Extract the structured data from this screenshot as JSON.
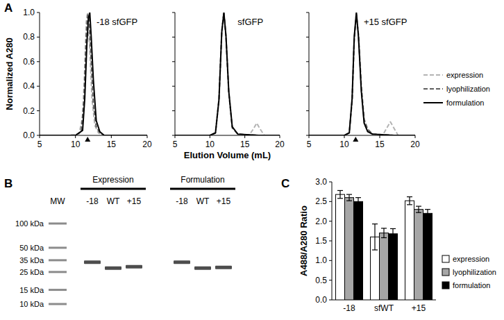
{
  "panel_labels": [
    "A",
    "B",
    "C"
  ],
  "chart_data": [
    {
      "type": "line",
      "title": "-18 sfGFP",
      "ylabel": "Normalized A280",
      "xlim": [
        5,
        20
      ],
      "xticks": [
        5,
        10,
        15,
        20
      ],
      "ylim": [
        0,
        1
      ],
      "yticks": [
        {
          "value": 0,
          "label": "0.0"
        },
        0.2,
        0.4,
        0.6,
        0.8,
        {
          "value": 1,
          "label": "1.0"
        }
      ],
      "reference_x": 11.7,
      "series": [
        {
          "name": "expression",
          "color": "#b3b3b3",
          "line_style": "dashed",
          "x": [
            5,
            9,
            10.5,
            11,
            11.3,
            11.5,
            11.7,
            12,
            12.3,
            12.7,
            13.2,
            14,
            17,
            20
          ],
          "values": [
            0,
            0,
            0.01,
            0.15,
            0.55,
            0.92,
            1,
            0.7,
            0.3,
            0.08,
            0.02,
            0,
            0,
            0
          ]
        },
        {
          "name": "lyophilization",
          "color": "#5f5f5f",
          "line_style": "dashed",
          "x": [
            5,
            10,
            10.8,
            11.2,
            11.5,
            11.7,
            11.9,
            12.2,
            12.5,
            12.9,
            13.4,
            14,
            17,
            20
          ],
          "values": [
            0,
            0,
            0.03,
            0.3,
            0.8,
            0.98,
            0.95,
            0.6,
            0.25,
            0.07,
            0.02,
            0,
            0,
            0
          ]
        },
        {
          "name": "formulation",
          "color": "#000000",
          "line_style": "solid",
          "x": [
            5,
            10,
            11,
            11.3,
            11.6,
            11.8,
            12,
            12.2,
            12.5,
            12.9,
            13.4,
            14,
            17,
            20
          ],
          "values": [
            0,
            0,
            0.04,
            0.3,
            0.75,
            0.95,
            1,
            0.8,
            0.45,
            0.12,
            0.03,
            0,
            0,
            0
          ]
        }
      ]
    },
    {
      "type": "line",
      "title": "sfGFP",
      "xlabel": "Elution Volume (mL)",
      "xlim": [
        5,
        20
      ],
      "xticks": [
        5,
        10,
        15,
        20
      ],
      "ylim": [
        0,
        1
      ],
      "yticks": [
        0,
        0.2,
        0.4,
        0.6,
        0.8,
        1
      ],
      "tick_labels": "x",
      "series": [
        {
          "name": "expression",
          "color": "#b3b3b3",
          "line_style": "dashed",
          "x": [
            5,
            10,
            10.8,
            11.3,
            11.7,
            12,
            12.3,
            12.7,
            13.2,
            14,
            15.6,
            16.2,
            16.7,
            17.2,
            17.8,
            20
          ],
          "values": [
            0,
            0,
            0.02,
            0.28,
            0.83,
            1,
            0.82,
            0.36,
            0.07,
            0.01,
            0,
            0.05,
            0.1,
            0.05,
            0,
            0
          ]
        },
        {
          "name": "lyophilization",
          "color": "#5f5f5f",
          "line_style": "dashed",
          "x": [
            5,
            10,
            10.8,
            11.3,
            11.7,
            12,
            12.3,
            12.7,
            13.2,
            14,
            17,
            20
          ],
          "values": [
            0,
            0,
            0.02,
            0.3,
            0.85,
            1,
            0.8,
            0.35,
            0.06,
            0.01,
            0,
            0
          ]
        },
        {
          "name": "formulation",
          "color": "#000000",
          "line_style": "solid",
          "x": [
            5,
            10,
            10.8,
            11.3,
            11.7,
            12,
            12.3,
            12.7,
            13.2,
            14,
            17,
            20
          ],
          "values": [
            0,
            0,
            0.02,
            0.29,
            0.84,
            1,
            0.81,
            0.36,
            0.07,
            0.01,
            0,
            0
          ]
        }
      ]
    },
    {
      "type": "line",
      "title": "+15 sfGFP",
      "legend": "right",
      "xlim": [
        5,
        20
      ],
      "xticks": [
        5,
        10,
        15,
        20
      ],
      "ylim": [
        0,
        1
      ],
      "yticks": [
        0,
        0.2,
        0.4,
        0.6,
        0.8,
        1
      ],
      "tick_labels": "x",
      "reference_x": 11.6,
      "series": [
        {
          "name": "expression",
          "color": "#b3b3b3",
          "line_style": "dashed",
          "x": [
            5,
            10,
            10.7,
            11.1,
            11.4,
            11.7,
            12,
            12.4,
            12.8,
            13.3,
            14,
            15.4,
            16,
            16.5,
            17,
            17.6,
            20
          ],
          "values": [
            0,
            0,
            0.02,
            0.3,
            0.8,
            1,
            0.8,
            0.35,
            0.1,
            0.03,
            0.01,
            0,
            0.06,
            0.11,
            0.06,
            0,
            0
          ]
        },
        {
          "name": "lyophilization",
          "color": "#5f5f5f",
          "line_style": "dashed",
          "x": [
            5,
            10,
            10.7,
            11.1,
            11.4,
            11.7,
            12,
            12.4,
            12.8,
            13.3,
            14,
            17,
            20
          ],
          "values": [
            0,
            0,
            0.02,
            0.28,
            0.78,
            0.98,
            0.82,
            0.4,
            0.13,
            0.05,
            0.01,
            0,
            0
          ]
        },
        {
          "name": "formulation",
          "color": "#000000",
          "line_style": "solid",
          "x": [
            5,
            10,
            10.7,
            11.1,
            11.4,
            11.7,
            12,
            12.4,
            12.8,
            13.3,
            14,
            17,
            20
          ],
          "values": [
            0,
            0,
            0.02,
            0.3,
            0.8,
            1,
            0.8,
            0.36,
            0.1,
            0.03,
            0.01,
            0,
            0
          ]
        }
      ]
    },
    {
      "type": "bar",
      "ylabel": "A488/A280 Ratio",
      "legend": "right",
      "categories": [
        "-18",
        "sfWT",
        "+15"
      ],
      "ylim": [
        0,
        3
      ],
      "yticks": [
        {
          "value": 0,
          "label": "0.0"
        },
        0.5,
        {
          "value": 1,
          "label": "1.0"
        },
        1.5,
        {
          "value": 2,
          "label": "2.0"
        },
        2.5,
        {
          "value": 3,
          "label": "3.0"
        }
      ],
      "series": [
        {
          "name": "expression",
          "color": "#ffffff",
          "values": [
            2.68,
            1.6,
            2.52
          ],
          "errors": [
            0.1,
            0.33,
            0.1
          ]
        },
        {
          "name": "lyophilization",
          "color": "#a6a6a6",
          "values": [
            2.6,
            1.7,
            2.3
          ],
          "errors": [
            0.08,
            0.12,
            0.08
          ]
        },
        {
          "name": "formulation",
          "color": "#000000",
          "values": [
            2.5,
            1.68,
            2.2
          ],
          "errors": [
            0.1,
            0.13,
            0.1
          ]
        }
      ]
    }
  ],
  "gel": {
    "ladder_label": "MW",
    "ladder": [
      {
        "value": 100,
        "label": "100 kDa"
      },
      {
        "value": 50,
        "label": "50 kDa"
      },
      {
        "value": 35,
        "label": "35 kDa"
      },
      {
        "value": 25,
        "label": "25 kDa"
      },
      {
        "value": 15,
        "label": "15 kDa"
      },
      {
        "value": 10,
        "label": "10 kDa"
      }
    ],
    "groups": [
      {
        "label": "Expression",
        "lanes": [
          "-18",
          "WT",
          "+15"
        ],
        "band_kda": [
          33,
          28,
          29
        ]
      },
      {
        "label": "Formulation",
        "lanes": [
          "-18",
          "WT",
          "+15"
        ],
        "band_kda": [
          33,
          28,
          28.5
        ]
      }
    ]
  }
}
